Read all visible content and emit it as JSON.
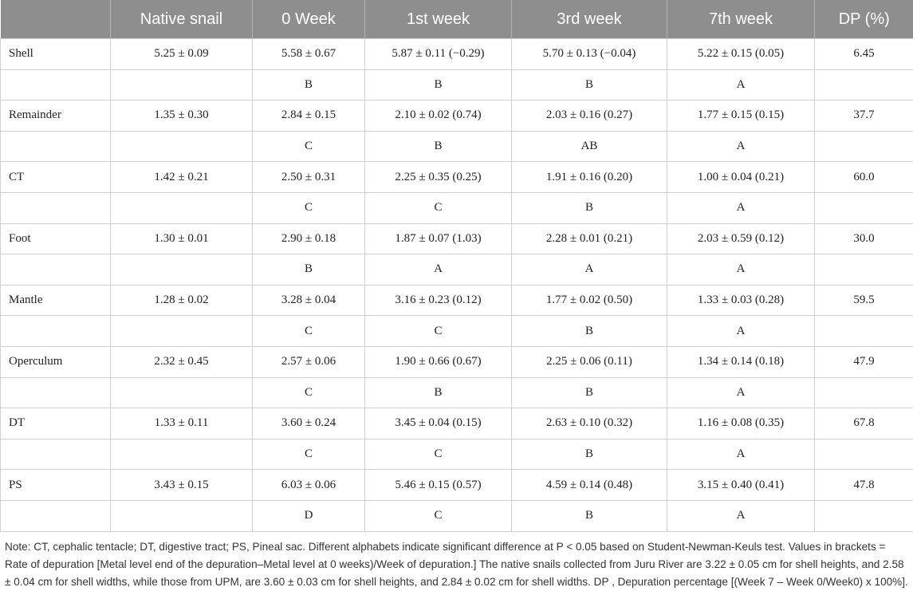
{
  "headers": [
    "",
    "Native snail",
    "0 Week",
    "1st week",
    "3rd week",
    "7th week",
    "DP (%)"
  ],
  "rows": [
    {
      "tissue": "Shell",
      "values": [
        "5.25 ± 0.09",
        "5.58 ± 0.67",
        "5.87 ± 0.11 (−0.29)",
        "5.70 ± 0.13 (−0.04)",
        "5.22 ± 0.15 (0.05)",
        "6.45"
      ],
      "letters": [
        "",
        "B",
        "B",
        "B",
        "A",
        ""
      ]
    },
    {
      "tissue": "Remainder",
      "values": [
        "1.35 ± 0.30",
        "2.84 ± 0.15",
        "2.10 ± 0.02 (0.74)",
        "2.03 ± 0.16 (0.27)",
        "1.77 ± 0.15 (0.15)",
        "37.7"
      ],
      "letters": [
        "",
        "C",
        "B",
        "AB",
        "A",
        ""
      ]
    },
    {
      "tissue": "CT",
      "values": [
        "1.42 ± 0.21",
        "2.50 ± 0.31",
        "2.25 ± 0.35 (0.25)",
        "1.91 ± 0.16 (0.20)",
        "1.00 ± 0.04 (0.21)",
        "60.0"
      ],
      "letters": [
        "",
        "C",
        "C",
        "B",
        "A",
        ""
      ]
    },
    {
      "tissue": "Foot",
      "values": [
        "1.30 ± 0.01",
        "2.90 ± 0.18",
        "1.87 ± 0.07 (1.03)",
        "2.28 ± 0.01 (0.21)",
        "2.03 ± 0.59 (0.12)",
        "30.0"
      ],
      "letters": [
        "",
        "B",
        "A",
        "A",
        "A",
        ""
      ]
    },
    {
      "tissue": "Mantle",
      "values": [
        "1.28 ± 0.02",
        "3.28 ± 0.04",
        "3.16 ± 0.23 (0.12)",
        "1.77 ± 0.02 (0.50)",
        "1.33 ± 0.03 (0.28)",
        "59.5"
      ],
      "letters": [
        "",
        "C",
        "C",
        "B",
        "A",
        ""
      ]
    },
    {
      "tissue": "Operculum",
      "values": [
        "2.32 ± 0.45",
        "2.57 ± 0.06",
        "1.90 ± 0.66 (0.67)",
        "2.25 ± 0.06 (0.11)",
        "1.34 ± 0.14 (0.18)",
        "47.9"
      ],
      "letters": [
        "",
        "C",
        "B",
        "B",
        "A",
        ""
      ]
    },
    {
      "tissue": "DT",
      "values": [
        "1.33 ± 0.11",
        "3.60 ± 0.24",
        "3.45 ± 0.04 (0.15)",
        "2.63 ± 0.10 (0.32)",
        "1.16 ± 0.08 (0.35)",
        "67.8"
      ],
      "letters": [
        "",
        "C",
        "C",
        "B",
        "A",
        ""
      ]
    },
    {
      "tissue": "PS",
      "values": [
        "3.43 ± 0.15",
        "6.03 ± 0.06",
        "5.46 ± 0.15 (0.57)",
        "4.59 ± 0.14 (0.48)",
        "3.15 ± 0.40 (0.41)",
        "47.8"
      ],
      "letters": [
        "",
        "D",
        "C",
        "B",
        "A",
        ""
      ]
    }
  ],
  "note": "Note: CT, cephalic tentacle; DT, digestive tract; PS, Pineal sac. Different alphabets indicate significant difference at P < 0.05 based on Student-Newman-Keuls test. Values in brackets = Rate of depuration [Metal level end of the depuration–Metal level at 0 weeks)/Week of depuration.] The native snails collected from Juru River are 3.22 ± 0.05 cm for shell heights, and 2.58 ± 0.04 cm for shell widths, while those from UPM, are 3.60 ± 0.03 cm for shell heights, and 2.84 ± 0.02 cm for shell widths. DP , Depuration percentage [(Week 7 – Week 0/Week0) x 100%]."
}
